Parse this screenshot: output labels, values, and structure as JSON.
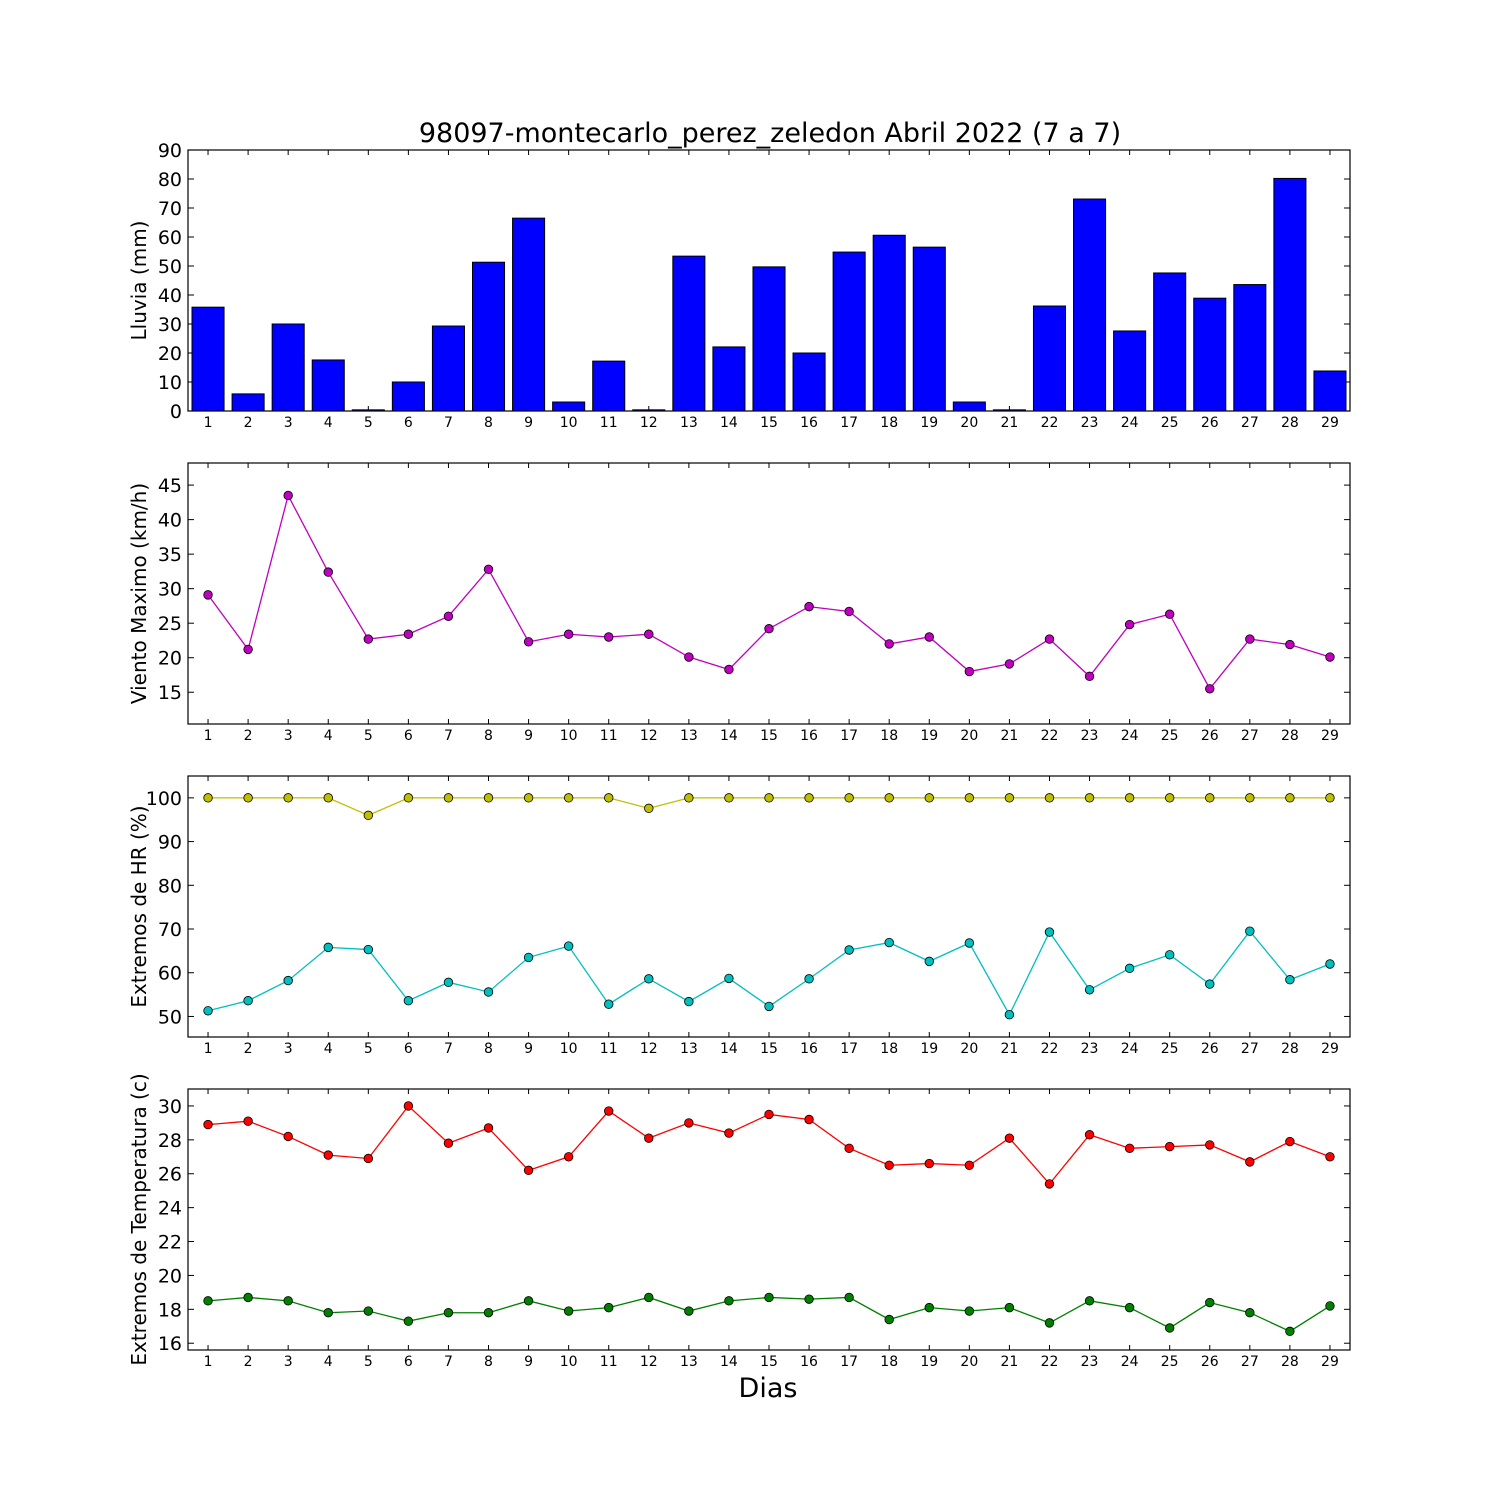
{
  "chart_data": [
    {
      "type": "bar",
      "title": "98097-montecarlo_perez_zeledon Abril 2022  (7 a 7)",
      "ylabel": "Lluvia (mm)",
      "xlabel": "",
      "ylim": [
        0,
        90
      ],
      "yticks": [
        0,
        10,
        20,
        30,
        40,
        50,
        60,
        70,
        80,
        90
      ],
      "categories": [
        "1",
        "2",
        "3",
        "4",
        "5",
        "6",
        "7",
        "8",
        "9",
        "10",
        "11",
        "12",
        "13",
        "14",
        "15",
        "16",
        "17",
        "18",
        "19",
        "20",
        "21",
        "22",
        "23",
        "24",
        "25",
        "26",
        "27",
        "28",
        "29"
      ],
      "series": [
        {
          "color": "#0000ff",
          "values": [
            35.8,
            5.9,
            30.0,
            17.6,
            0.4,
            10.0,
            29.3,
            51.3,
            66.5,
            3.1,
            17.2,
            0.4,
            53.4,
            22.1,
            49.7,
            20.0,
            54.8,
            60.6,
            56.5,
            3.1,
            0.4,
            36.2,
            73.1,
            27.6,
            47.6,
            38.9,
            43.6,
            80.2,
            13.8
          ]
        }
      ]
    },
    {
      "type": "line",
      "title": "",
      "ylabel": "Viento Maximo (km/h)",
      "xlabel": "",
      "ylim": [
        10.4,
        48.2
      ],
      "yticks": [
        15,
        20,
        25,
        30,
        35,
        40,
        45
      ],
      "categories": [
        "1",
        "2",
        "3",
        "4",
        "5",
        "6",
        "7",
        "8",
        "9",
        "10",
        "11",
        "12",
        "13",
        "14",
        "15",
        "16",
        "17",
        "18",
        "19",
        "20",
        "21",
        "22",
        "23",
        "24",
        "25",
        "26",
        "27",
        "28",
        "29"
      ],
      "series": [
        {
          "color": "#bf00bf",
          "values": [
            29.1,
            21.2,
            43.5,
            32.4,
            22.7,
            23.4,
            26.0,
            32.8,
            22.3,
            23.4,
            23.0,
            23.4,
            20.1,
            18.3,
            24.2,
            27.4,
            26.7,
            22.0,
            23.0,
            18.0,
            19.1,
            22.7,
            17.3,
            24.8,
            26.3,
            15.5,
            22.7,
            21.9,
            20.1
          ]
        }
      ]
    },
    {
      "type": "line",
      "title": "",
      "ylabel": "Extremos de HR (%)",
      "xlabel": "",
      "ylim": [
        45.3,
        105
      ],
      "yticks": [
        50,
        60,
        70,
        80,
        90,
        100
      ],
      "categories": [
        "1",
        "2",
        "3",
        "4",
        "5",
        "6",
        "7",
        "8",
        "9",
        "10",
        "11",
        "12",
        "13",
        "14",
        "15",
        "16",
        "17",
        "18",
        "19",
        "20",
        "21",
        "22",
        "23",
        "24",
        "25",
        "26",
        "27",
        "28",
        "29"
      ],
      "series": [
        {
          "color": "#bfbf00",
          "values": [
            100,
            100,
            100,
            100,
            96,
            100,
            100,
            100,
            100,
            100,
            100,
            97.6,
            100,
            100,
            100,
            100,
            100,
            100,
            100,
            100,
            100,
            100,
            100,
            100,
            100,
            100,
            100,
            100,
            100
          ]
        },
        {
          "color": "#00bfbf",
          "values": [
            51.3,
            53.6,
            58.2,
            65.8,
            65.3,
            53.6,
            57.8,
            55.6,
            63.5,
            66.1,
            52.8,
            58.6,
            53.4,
            58.7,
            52.3,
            58.6,
            65.2,
            66.9,
            62.6,
            66.8,
            50.4,
            69.3,
            56.1,
            61.0,
            64.1,
            57.4,
            69.5,
            58.4,
            62.0
          ]
        }
      ]
    },
    {
      "type": "line",
      "title": "",
      "ylabel": "Extremos de Temperatura (c)",
      "xlabel": "Dias",
      "ylim": [
        15.6,
        31.0
      ],
      "yticks": [
        16,
        18,
        20,
        22,
        24,
        26,
        28,
        30
      ],
      "categories": [
        "1",
        "2",
        "3",
        "4",
        "5",
        "6",
        "7",
        "8",
        "9",
        "10",
        "11",
        "12",
        "13",
        "14",
        "15",
        "16",
        "17",
        "18",
        "19",
        "20",
        "21",
        "22",
        "23",
        "24",
        "25",
        "26",
        "27",
        "28",
        "29"
      ],
      "series": [
        {
          "color": "#ff0000",
          "values": [
            28.9,
            29.1,
            28.2,
            27.1,
            26.9,
            30.0,
            27.8,
            28.7,
            26.2,
            27.0,
            29.7,
            28.1,
            29.0,
            28.4,
            29.5,
            29.2,
            27.5,
            26.5,
            26.6,
            26.5,
            28.1,
            25.4,
            28.3,
            27.5,
            27.6,
            27.7,
            26.7,
            27.9,
            27.0
          ]
        },
        {
          "color": "#008000",
          "values": [
            18.5,
            18.7,
            18.5,
            17.8,
            17.9,
            17.3,
            17.8,
            17.8,
            18.5,
            17.9,
            18.1,
            18.7,
            17.9,
            18.5,
            18.7,
            18.6,
            18.7,
            17.4,
            18.1,
            17.9,
            18.1,
            17.2,
            18.5,
            18.1,
            16.9,
            18.4,
            17.8,
            16.7,
            18.2
          ]
        }
      ]
    }
  ]
}
